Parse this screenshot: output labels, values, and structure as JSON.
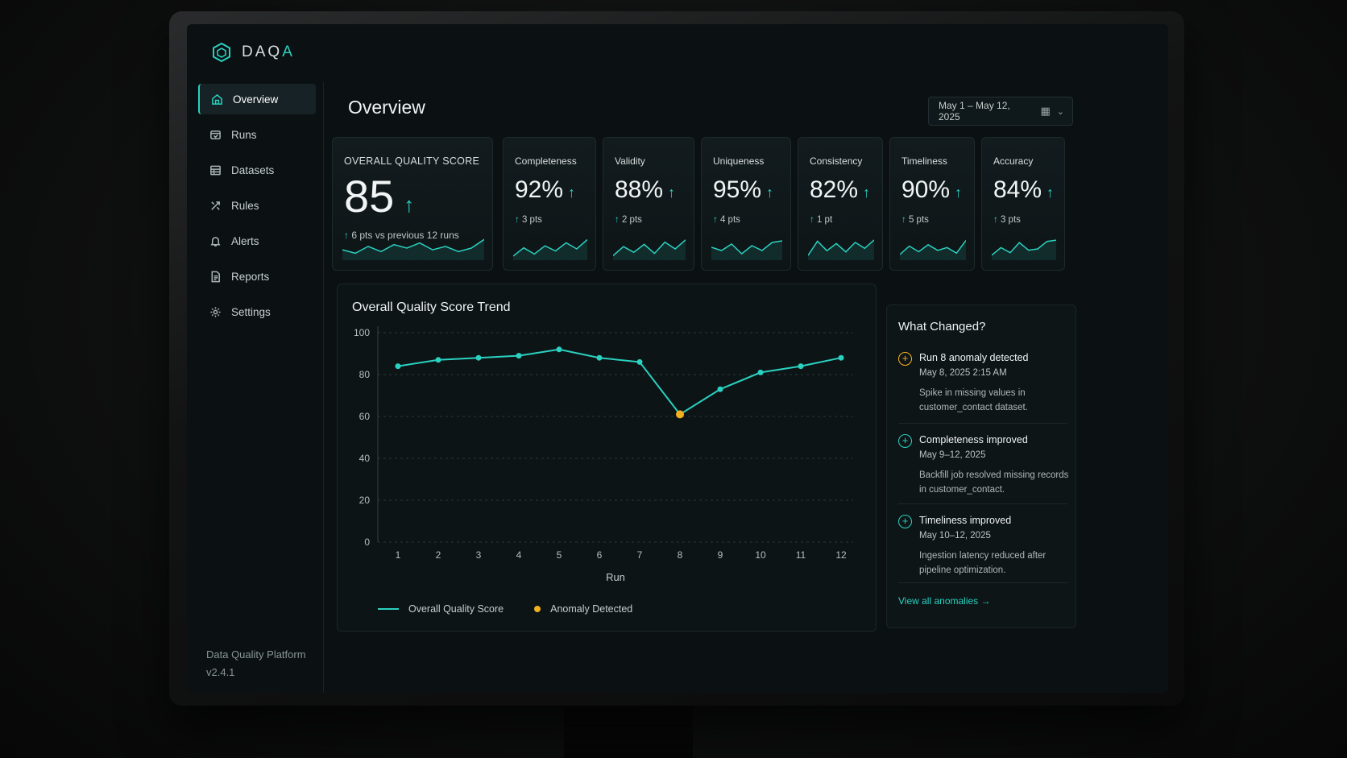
{
  "app": {
    "logo_text_a": "DAQ",
    "logo_text_b": "A",
    "version_line1": "Data Quality Platform",
    "version_line2": "v2.4.1"
  },
  "sidebar": {
    "items": [
      {
        "label": "Overview",
        "icon": "home-icon",
        "active": true
      },
      {
        "label": "Runs",
        "icon": "runs-icon"
      },
      {
        "label": "Datasets",
        "icon": "datasets-icon"
      },
      {
        "label": "Rules",
        "icon": "rules-icon"
      },
      {
        "label": "Alerts",
        "icon": "bell-icon"
      },
      {
        "label": "Reports",
        "icon": "report-icon"
      },
      {
        "label": "Settings",
        "icon": "gear-icon"
      }
    ]
  },
  "header": {
    "title": "Overview",
    "date_range": "May 1 – May 12, 2025"
  },
  "score": {
    "label": "OVERALL QUALITY SCORE",
    "value": "85",
    "delta": "6 pts vs previous 12 runs",
    "spark": [
      60,
      58,
      62,
      59,
      63,
      61,
      64,
      60,
      62,
      59,
      61,
      66
    ]
  },
  "metrics": [
    {
      "label": "Completeness",
      "value": "92%",
      "delta": "3 pts",
      "spark": [
        50,
        58,
        52,
        60,
        55,
        63,
        57,
        66
      ]
    },
    {
      "label": "Validity",
      "value": "88%",
      "delta": "2 pts",
      "spark": [
        52,
        60,
        55,
        62,
        54,
        64,
        58,
        66
      ]
    },
    {
      "label": "Uniqueness",
      "value": "95%",
      "delta": "4 pts",
      "spark": [
        60,
        58,
        62,
        56,
        61,
        58,
        63,
        64
      ]
    },
    {
      "label": "Consistency",
      "value": "82%",
      "delta": "1 pt",
      "spark": [
        52,
        64,
        56,
        62,
        55,
        63,
        58,
        65
      ]
    },
    {
      "label": "Timeliness",
      "value": "90%",
      "delta": "5 pts",
      "spark": [
        56,
        62,
        58,
        63,
        59,
        61,
        57,
        66
      ]
    },
    {
      "label": "Accuracy",
      "value": "84%",
      "delta": "3 pts",
      "spark": [
        52,
        58,
        54,
        62,
        56,
        57,
        63,
        64
      ]
    }
  ],
  "trend": {
    "title": "Overall Quality Score Trend",
    "legend_line": "Overall Quality Score",
    "legend_anomaly": "Anomaly Detected"
  },
  "chart_data": {
    "type": "line",
    "xlabel": "Run",
    "ylabel": "",
    "x": [
      1,
      2,
      3,
      4,
      5,
      6,
      7,
      8,
      9,
      10,
      11,
      12
    ],
    "ylim": [
      0,
      100
    ],
    "yticks": [
      0,
      20,
      40,
      60,
      80,
      100
    ],
    "grid": true,
    "series": [
      {
        "name": "Overall Quality Score",
        "values": [
          84,
          87,
          88,
          89,
          92,
          88,
          86,
          61,
          73,
          81,
          84,
          88
        ],
        "color": "#2ad1c0"
      }
    ],
    "anomalies": [
      {
        "x": 8,
        "y": 61,
        "label": "Anomaly Detected",
        "color": "#f2b020"
      }
    ],
    "legend": "bottom-left"
  },
  "changes": {
    "title": "What Changed?",
    "items": [
      {
        "type": "warning",
        "title": "Run 8 anomaly detected",
        "date": "May 8, 2025  2:15 AM",
        "desc": "Spike in missing values in customer_contact dataset."
      },
      {
        "type": "positive",
        "title": "Completeness improved",
        "date": "May 9–12, 2025",
        "desc": "Backfill job resolved missing records in customer_contact."
      },
      {
        "type": "positive",
        "title": "Timeliness improved",
        "date": "May 10–12, 2025",
        "desc": "Ingestion latency reduced after pipeline optimization."
      }
    ],
    "view_all": "View all anomalies"
  },
  "colors": {
    "accent": "#2ad1c0",
    "anomaly": "#f2b020",
    "background": "#0b1113"
  }
}
